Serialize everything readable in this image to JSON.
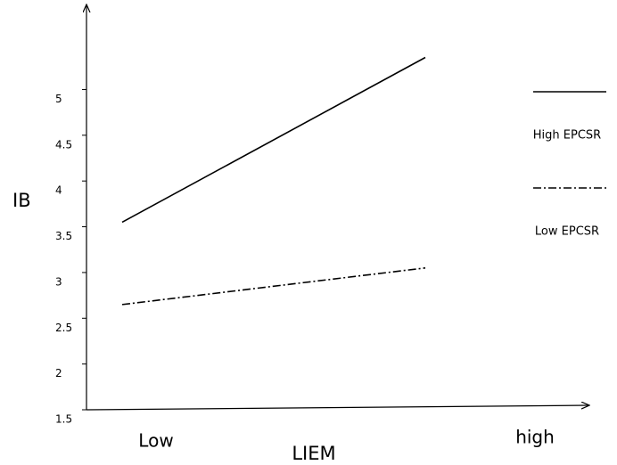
{
  "chart_data": {
    "type": "line",
    "x_label": "LIEM",
    "y_label": "IB",
    "categories": [
      "Low",
      "high"
    ],
    "series": [
      {
        "name": "High EPCSR",
        "color": "#000000",
        "line_style": "solid",
        "values": [
          3.55,
          5.35
        ]
      },
      {
        "name": "Low EPCSR",
        "color": "#000000",
        "line_style": "dashdot",
        "values": [
          2.65,
          3.05
        ]
      }
    ],
    "ylim": [
      1.5,
      5.9
    ],
    "yticks": [
      1.5,
      2,
      2.5,
      3,
      3.5,
      4,
      4.5,
      5
    ],
    "grid": false,
    "legend": "right"
  }
}
